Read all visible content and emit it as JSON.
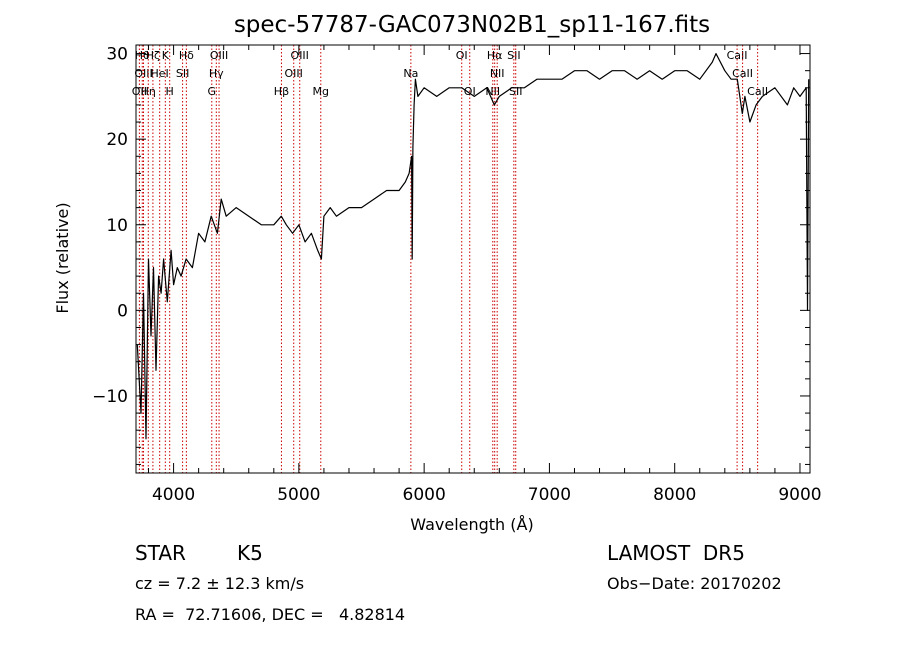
{
  "chart_data": {
    "type": "line",
    "title": "spec-57787-GAC073N02B1_sp11-167.fits",
    "xlabel": "Wavelength (Å)",
    "ylabel": "Flux (relative)",
    "xlim": [
      3700,
      9080
    ],
    "ylim": [
      -19,
      31
    ],
    "xticks": [
      4000,
      5000,
      6000,
      7000,
      8000,
      9000
    ],
    "xtick_labels": [
      "4000",
      "5000",
      "6000",
      "7000",
      "8000",
      "9000"
    ],
    "yticks": [
      -10,
      0,
      10,
      20,
      30
    ],
    "ytick_labels": [
      "−10",
      "0",
      "10",
      "20",
      "30"
    ],
    "grid": false,
    "series": [
      {
        "x": [
          3710,
          3740,
          3760,
          3780,
          3800,
          3820,
          3840,
          3860,
          3880,
          3900,
          3920,
          3950,
          3980,
          4000,
          4030,
          4060,
          4100,
          4150,
          4200,
          4250,
          4300,
          4350,
          4380,
          4420,
          4500,
          4600,
          4700,
          4800,
          4860,
          4900,
          4950,
          5000,
          5050,
          5100,
          5150,
          5180,
          5200,
          5250,
          5300,
          5400,
          5500,
          5600,
          5700,
          5800,
          5850,
          5880,
          5900,
          5905,
          5910,
          5920,
          5930,
          5950,
          6000,
          6100,
          6200,
          6300,
          6400,
          6500,
          6560,
          6600,
          6700,
          6800,
          6900,
          7000,
          7100,
          7200,
          7300,
          7400,
          7500,
          7600,
          7700,
          7800,
          7900,
          8000,
          8100,
          8200,
          8300,
          8330,
          8400,
          8450,
          8500,
          8540,
          8560,
          8600,
          8650,
          8700,
          8800,
          8900,
          8950,
          9000,
          9050,
          9060,
          9070
        ],
        "y": [
          -4,
          -12,
          2,
          -15,
          6,
          -3,
          5,
          -7,
          4,
          2,
          6,
          1,
          7,
          3,
          5,
          4,
          6,
          5,
          9,
          8,
          11,
          9,
          13,
          11,
          12,
          11,
          10,
          10,
          11,
          10,
          9,
          10,
          8,
          9,
          7,
          6,
          11,
          12,
          11,
          12,
          12,
          13,
          14,
          14,
          15,
          16,
          18,
          6,
          19,
          24,
          27,
          25,
          26,
          25,
          26,
          26,
          25,
          26,
          24,
          25,
          26,
          26,
          27,
          27,
          27,
          28,
          28,
          27,
          28,
          28,
          27,
          28,
          27,
          28,
          28,
          27,
          29,
          30,
          28,
          27,
          27,
          23,
          25,
          22,
          24,
          25,
          26,
          24,
          26,
          25,
          26,
          0,
          27
        ]
      }
    ],
    "lines": [
      {
        "x": 3727,
        "label": "OII",
        "row": 2
      },
      {
        "x": 3750,
        "label": "Hθ",
        "row": 0
      },
      {
        "x": 3760,
        "label": "OIII",
        "row": 1
      },
      {
        "x": 3798,
        "label": "Hη",
        "row": 2
      },
      {
        "x": 3835,
        "label": "Hζ",
        "row": 0
      },
      {
        "x": 3889,
        "label": "HeI",
        "row": 1
      },
      {
        "x": 3934,
        "label": "K",
        "row": 0
      },
      {
        "x": 3969,
        "label": "H",
        "row": 2
      },
      {
        "x": 4072,
        "label": "SII",
        "row": 1
      },
      {
        "x": 4102,
        "label": "Hδ",
        "row": 0
      },
      {
        "x": 4305,
        "label": "G",
        "row": 2
      },
      {
        "x": 4341,
        "label": "Hγ",
        "row": 1
      },
      {
        "x": 4363,
        "label": "OIII",
        "row": 0
      },
      {
        "x": 4861,
        "label": "Hβ",
        "row": 2
      },
      {
        "x": 4959,
        "label": "OIII",
        "row": 1
      },
      {
        "x": 5007,
        "label": "OIII",
        "row": 0
      },
      {
        "x": 5175,
        "label": "Mg",
        "row": 2
      },
      {
        "x": 5894,
        "label": "Na",
        "row": 1
      },
      {
        "x": 6300,
        "label": "OI",
        "row": 0
      },
      {
        "x": 6364,
        "label": "OI",
        "row": 2
      },
      {
        "x": 6548,
        "label": "NII",
        "row": 2
      },
      {
        "x": 6563,
        "label": "Hα",
        "row": 0
      },
      {
        "x": 6583,
        "label": "NII",
        "row": 1
      },
      {
        "x": 6716,
        "label": "SII",
        "row": 0
      },
      {
        "x": 6731,
        "label": "SII",
        "row": 2
      },
      {
        "x": 8498,
        "label": "CaII",
        "row": 0
      },
      {
        "x": 8542,
        "label": "CaII",
        "row": 1
      },
      {
        "x": 8662,
        "label": "CaII",
        "row": 2
      }
    ]
  },
  "info": {
    "class": "STAR",
    "subclass": "K5",
    "survey": "LAMOST  DR5",
    "cz": "cz = 7.2 ± 12.3 km/s",
    "obs_date": "Obs−Date: 20170202",
    "coords": "RA =  72.71606, DEC =   4.82814"
  },
  "colors": {
    "spectrum": "#000000",
    "line_markers": "#cc0000",
    "axes": "#000000"
  }
}
